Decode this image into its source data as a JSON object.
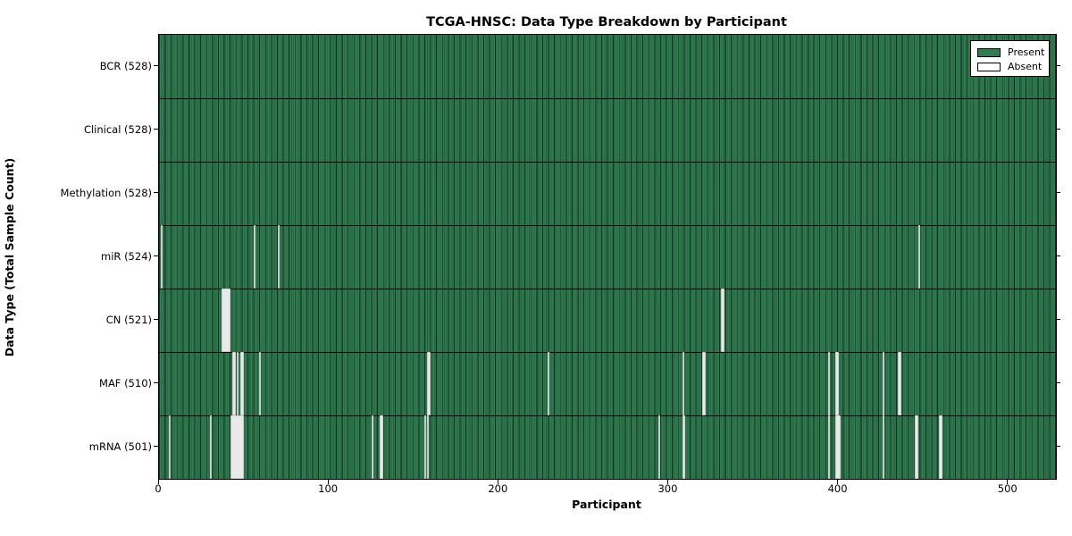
{
  "chart_data": {
    "type": "heatmap",
    "title": "TCGA-HNSC: Data Type Breakdown by Participant",
    "xlabel": "Participant",
    "ylabel": "Data Type (Total Sample Count)",
    "x_range": [
      0,
      528
    ],
    "x_ticks": [
      0,
      100,
      200,
      300,
      400,
      500
    ],
    "participants_total": 528,
    "grid": false,
    "legend_position": "upper right",
    "legend": [
      {
        "label": "Present",
        "color": "#2e7d52"
      },
      {
        "label": "Absent",
        "color": "#ffffff"
      }
    ],
    "rows": [
      {
        "label": "BCR (528)",
        "data_type": "BCR",
        "present_count": 528,
        "absent_count": 0,
        "absent_segments": []
      },
      {
        "label": "Clinical (528)",
        "data_type": "Clinical",
        "present_count": 528,
        "absent_count": 0,
        "absent_segments": []
      },
      {
        "label": "Methylation (528)",
        "data_type": "Methylation",
        "present_count": 528,
        "absent_count": 0,
        "absent_segments": []
      },
      {
        "label": "miR (524)",
        "data_type": "miR",
        "present_count": 524,
        "absent_count": 4,
        "absent_segments": [
          [
            1,
            1
          ],
          [
            56,
            1
          ],
          [
            70,
            1
          ],
          [
            447,
            1
          ]
        ]
      },
      {
        "label": "CN (521)",
        "data_type": "CN",
        "present_count": 521,
        "absent_count": 7,
        "absent_segments": [
          [
            37,
            5
          ],
          [
            331,
            2
          ]
        ]
      },
      {
        "label": "MAF (510)",
        "data_type": "MAF",
        "present_count": 510,
        "absent_count": 18,
        "absent_segments": [
          [
            43,
            2
          ],
          [
            46,
            1
          ],
          [
            48,
            2
          ],
          [
            59,
            1
          ],
          [
            158,
            2
          ],
          [
            229,
            1
          ],
          [
            308,
            1
          ],
          [
            320,
            2
          ],
          [
            394,
            1
          ],
          [
            398,
            2
          ],
          [
            426,
            1
          ],
          [
            435,
            2
          ]
        ]
      },
      {
        "label": "mRNA (501)",
        "data_type": "mRNA",
        "present_count": 501,
        "absent_count": 27,
        "absent_segments": [
          [
            6,
            1
          ],
          [
            30,
            1
          ],
          [
            42,
            8
          ],
          [
            125,
            1
          ],
          [
            130,
            2
          ],
          [
            156,
            1
          ],
          [
            158,
            1
          ],
          [
            294,
            1
          ],
          [
            308,
            2
          ],
          [
            394,
            1
          ],
          [
            398,
            3
          ],
          [
            426,
            1
          ],
          [
            445,
            2
          ],
          [
            459,
            2
          ]
        ]
      }
    ],
    "colors": {
      "present_fill": "#2f7c50",
      "absent_fill": "#e9e9e9",
      "cell_edge": "#000000",
      "axes_edge": "#000000"
    }
  }
}
